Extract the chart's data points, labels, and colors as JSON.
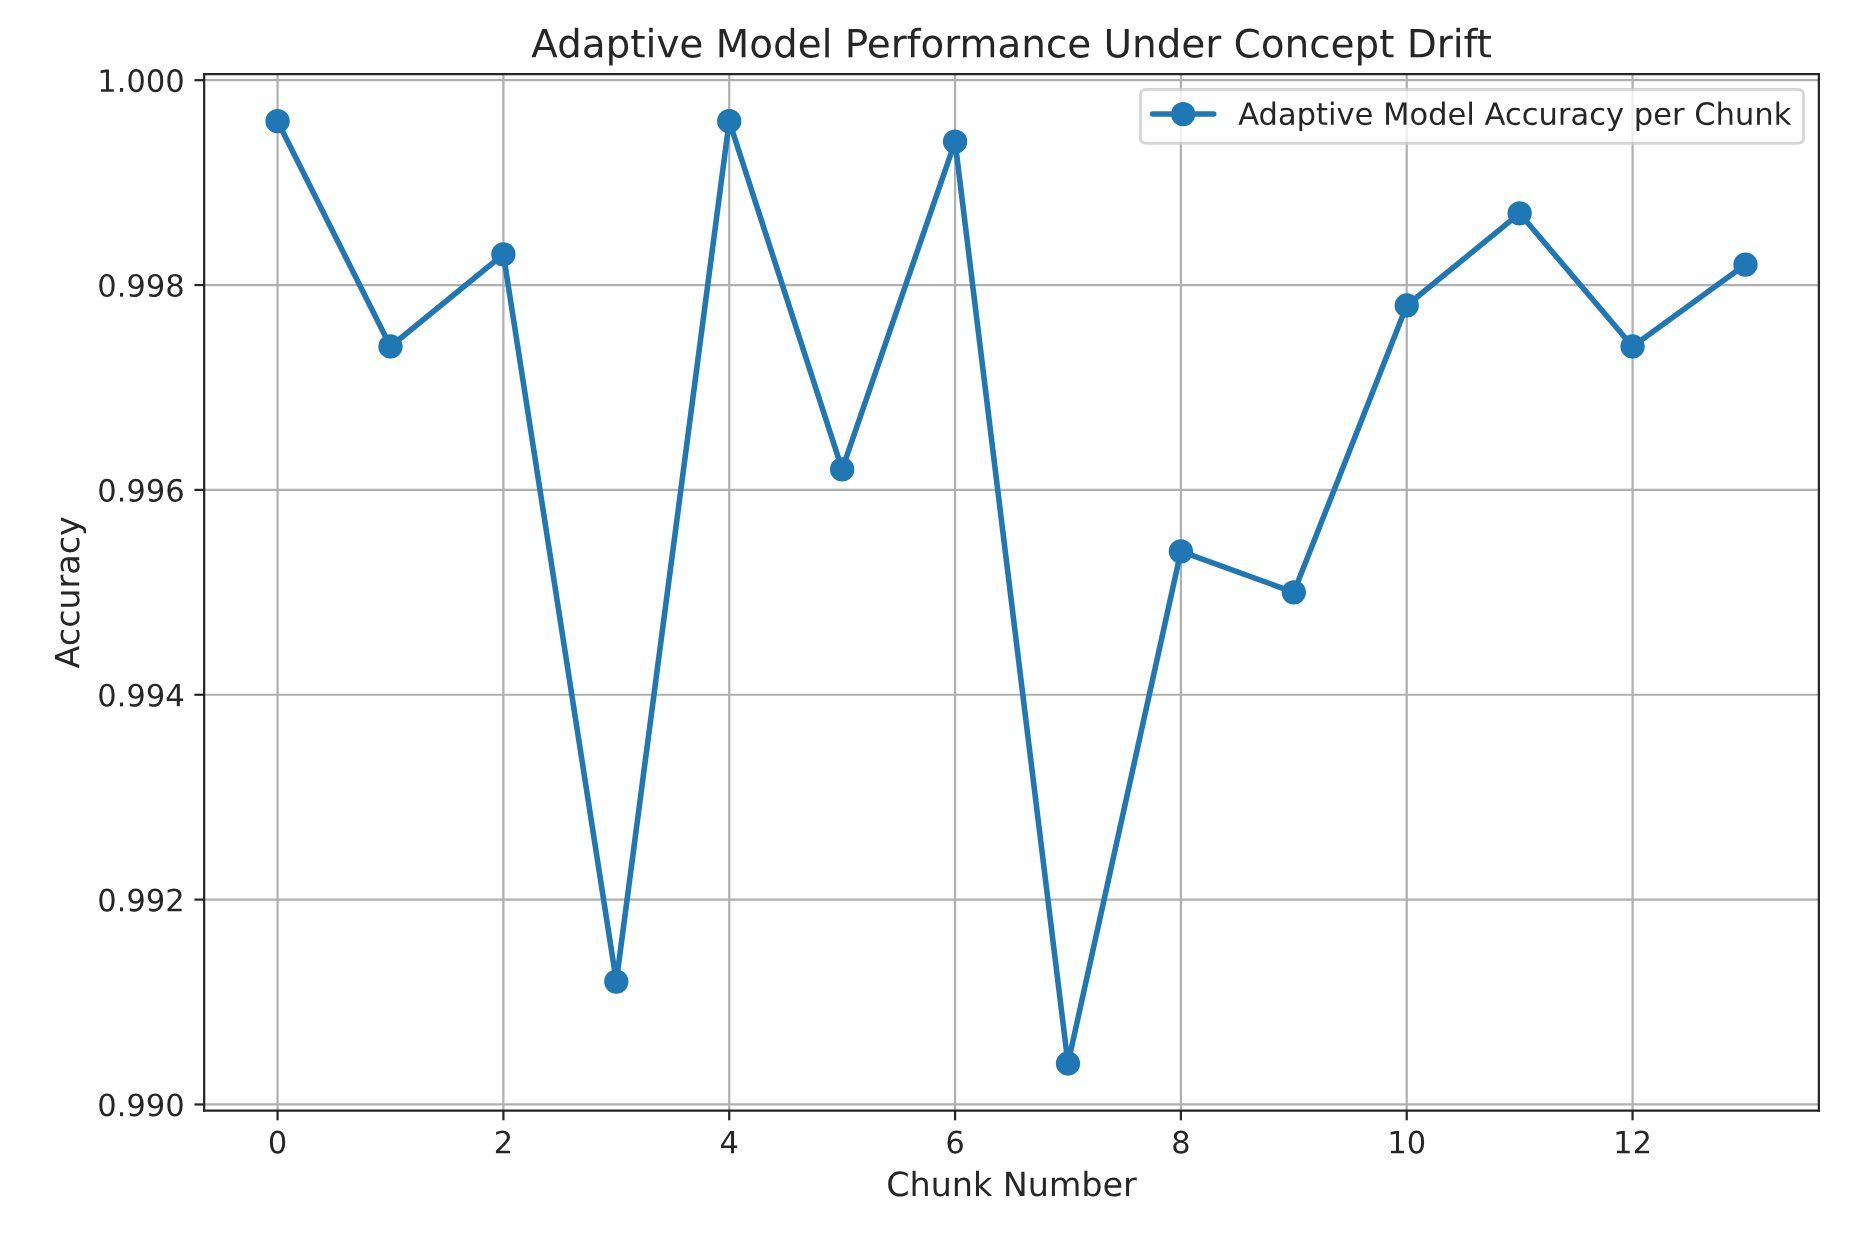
{
  "chart_data": {
    "type": "line",
    "title": "Adaptive Model Performance Under Concept Drift",
    "xlabel": "Chunk Number",
    "ylabel": "Accuracy",
    "x": [
      0,
      1,
      2,
      3,
      4,
      5,
      6,
      7,
      8,
      9,
      10,
      11,
      12,
      13
    ],
    "series": [
      {
        "name": "Adaptive Model Accuracy per Chunk",
        "color": "#1f77b4",
        "values": [
          0.9996,
          0.9974,
          0.9983,
          0.9912,
          0.9996,
          0.9962,
          0.9994,
          0.9904,
          0.9954,
          0.995,
          0.9978,
          0.9987,
          0.9974,
          0.9982
        ]
      }
    ],
    "xlim": [
      -0.65,
      13.65
    ],
    "xticks": [
      0,
      2,
      4,
      6,
      8,
      10,
      12
    ],
    "ylim": [
      0.98994,
      1.00006
    ],
    "yticks": [
      {
        "value": 0.99,
        "label": "0.990"
      },
      {
        "value": 0.992,
        "label": "0.992"
      },
      {
        "value": 0.994,
        "label": "0.994"
      },
      {
        "value": 0.996,
        "label": "0.996"
      },
      {
        "value": 0.998,
        "label": "0.998"
      },
      {
        "value": 1.0,
        "label": "1.000"
      }
    ],
    "grid": true,
    "legend": "top right",
    "marker": "circle",
    "line_style": "solid"
  }
}
